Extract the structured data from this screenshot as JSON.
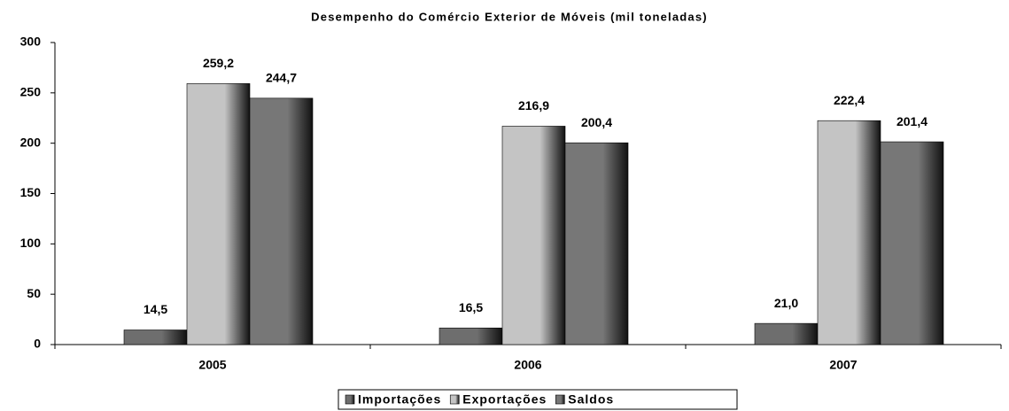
{
  "chart_data": {
    "type": "bar",
    "title": "Desempenho do Comércio Exterior de Móveis (mil toneladas)",
    "categories": [
      "2005",
      "2006",
      "2007"
    ],
    "series": [
      {
        "name": "Importações",
        "color": "#6e6e6e",
        "values": [
          14.5,
          16.5,
          21.0
        ],
        "value_labels": [
          "14,5",
          "16,5",
          "21,0"
        ]
      },
      {
        "name": "Exportações",
        "color": "#c4c4c4",
        "values": [
          259.2,
          216.9,
          222.4
        ],
        "value_labels": [
          "259,2",
          "216,9",
          "222,4"
        ]
      },
      {
        "name": "Saldos",
        "color": "#777777",
        "values": [
          244.7,
          200.4,
          201.4
        ],
        "value_labels": [
          "244,7",
          "200,4",
          "201,4"
        ]
      }
    ],
    "ylim": [
      0,
      300
    ],
    "yticks": [
      0,
      50,
      100,
      150,
      200,
      250,
      300
    ],
    "grid": false,
    "legend": "bottom"
  }
}
